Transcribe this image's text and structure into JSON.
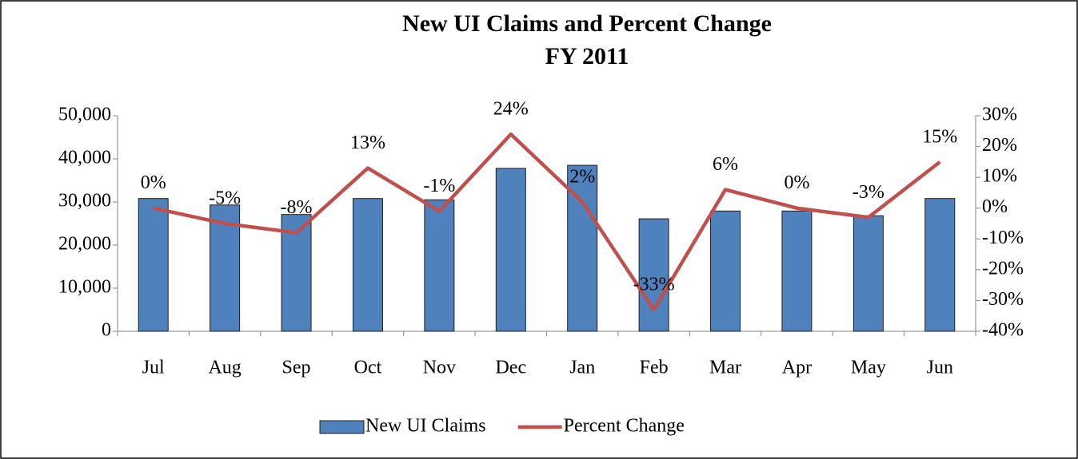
{
  "chart_data": {
    "type": "combo",
    "title": "New UI Claims and Percent  Change",
    "subtitle": "FY 2011",
    "categories": [
      "Jul",
      "Aug",
      "Sep",
      "Oct",
      "Nov",
      "Dec",
      "Jan",
      "Feb",
      "Mar",
      "Apr",
      "May",
      "Jun"
    ],
    "series": [
      {
        "name": "New UI Claims",
        "type": "bar",
        "color": "#4f81bd",
        "values": [
          30800,
          29300,
          27100,
          30800,
          30500,
          37800,
          38500,
          26100,
          27900,
          27900,
          26800,
          30800
        ]
      },
      {
        "name": "Percent Change",
        "type": "line",
        "axis": "y2",
        "color": "#c0504d",
        "values": [
          0,
          -5,
          -8,
          13,
          -1,
          24,
          2,
          -33,
          6,
          0,
          -3,
          15
        ],
        "value_labels": [
          "0%",
          "-5%",
          "-8%",
          "13%",
          "-1%",
          "24%",
          "2%",
          "-33%",
          "6%",
          "0%",
          "-3%",
          "15%"
        ]
      }
    ],
    "ylim": [
      0,
      50000
    ],
    "yticks": [
      0,
      {
        "value": 10000,
        "label": "10,000"
      },
      {
        "value": 20000,
        "label": "20,000"
      },
      {
        "value": 30000,
        "label": "30,000"
      },
      {
        "value": 40000,
        "label": "40,000"
      },
      {
        "value": 50000,
        "label": "50,000"
      }
    ],
    "y2lim": [
      -40,
      30
    ],
    "y2ticks": [
      {
        "value": -40,
        "label": "-40%"
      },
      {
        "value": -30,
        "label": "-30%"
      },
      {
        "value": -20,
        "label": "-20%"
      },
      {
        "value": -10,
        "label": "-10%"
      },
      {
        "value": 0,
        "label": "0%"
      },
      {
        "value": 10,
        "label": "10%"
      },
      {
        "value": 20,
        "label": "20%"
      },
      {
        "value": 30,
        "label": "30%"
      }
    ],
    "legend": "bottom"
  }
}
